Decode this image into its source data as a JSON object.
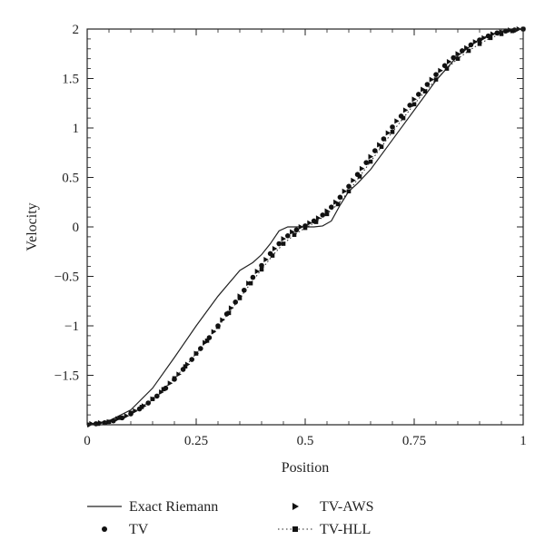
{
  "chart_data": {
    "type": "line",
    "xlabel": "Position",
    "ylabel": "Velocity",
    "xlim": [
      0,
      1
    ],
    "ylim": [
      -2,
      2
    ],
    "grid": false,
    "legend_position": "bottom",
    "x_ticks": [
      {
        "value": 0,
        "label": "0"
      },
      {
        "value": 0.25,
        "label": "0.25"
      },
      {
        "value": 0.5,
        "label": "0.5"
      },
      {
        "value": 0.75,
        "label": "0.75"
      },
      {
        "value": 1,
        "label": "1"
      }
    ],
    "y_ticks": [
      {
        "value": 2,
        "label": "2"
      },
      {
        "value": 1.5,
        "label": "1.5"
      },
      {
        "value": 1,
        "label": "1"
      },
      {
        "value": 0.5,
        "label": "0.5"
      },
      {
        "value": 0,
        "label": "0"
      },
      {
        "value": -0.5,
        "label": "−0.5"
      },
      {
        "value": -1,
        "label": "−1"
      },
      {
        "value": -1.5,
        "label": "−1.5"
      }
    ],
    "series": [
      {
        "name": "Exact Riemann",
        "style": "solid-line",
        "x": [
          0,
          0.05,
          0.1,
          0.15,
          0.2,
          0.25,
          0.3,
          0.35,
          0.38,
          0.4,
          0.42,
          0.44,
          0.46,
          0.48,
          0.5,
          0.52,
          0.54,
          0.56,
          0.58,
          0.6,
          0.62,
          0.65,
          0.7,
          0.75,
          0.8,
          0.85,
          0.9,
          0.95,
          1.0
        ],
        "y": [
          -2.0,
          -1.96,
          -1.85,
          -1.63,
          -1.32,
          -1.0,
          -0.7,
          -0.44,
          -0.36,
          -0.28,
          -0.17,
          -0.04,
          0.0,
          0.0,
          0.0,
          0.0,
          0.01,
          0.06,
          0.22,
          0.36,
          0.44,
          0.58,
          0.88,
          1.18,
          1.48,
          1.73,
          1.9,
          1.98,
          2.0
        ]
      },
      {
        "name": "TV",
        "style": "circle-markers",
        "x": [
          0.0,
          0.02,
          0.04,
          0.06,
          0.08,
          0.1,
          0.12,
          0.14,
          0.16,
          0.18,
          0.2,
          0.22,
          0.24,
          0.26,
          0.28,
          0.3,
          0.32,
          0.34,
          0.36,
          0.38,
          0.4,
          0.42,
          0.44,
          0.46,
          0.48,
          0.5,
          0.52,
          0.54,
          0.56,
          0.58,
          0.6,
          0.62,
          0.64,
          0.66,
          0.68,
          0.7,
          0.72,
          0.74,
          0.76,
          0.78,
          0.8,
          0.82,
          0.84,
          0.86,
          0.88,
          0.9,
          0.92,
          0.94,
          0.96,
          0.98,
          1.0
        ],
        "y": [
          -2.0,
          -1.99,
          -1.98,
          -1.96,
          -1.93,
          -1.89,
          -1.84,
          -1.78,
          -1.71,
          -1.63,
          -1.54,
          -1.44,
          -1.34,
          -1.23,
          -1.12,
          -1.0,
          -0.88,
          -0.76,
          -0.64,
          -0.51,
          -0.39,
          -0.27,
          -0.17,
          -0.09,
          -0.03,
          0.01,
          0.06,
          0.12,
          0.2,
          0.3,
          0.41,
          0.53,
          0.65,
          0.77,
          0.89,
          1.01,
          1.12,
          1.23,
          1.34,
          1.44,
          1.54,
          1.63,
          1.71,
          1.78,
          1.84,
          1.89,
          1.93,
          1.96,
          1.98,
          1.99,
          2.0
        ]
      },
      {
        "name": "TV-AWS",
        "style": "triangle-markers",
        "x": [
          0.01,
          0.03,
          0.05,
          0.07,
          0.09,
          0.11,
          0.13,
          0.15,
          0.17,
          0.19,
          0.21,
          0.23,
          0.25,
          0.27,
          0.29,
          0.31,
          0.33,
          0.35,
          0.37,
          0.39,
          0.41,
          0.43,
          0.45,
          0.47,
          0.49,
          0.51,
          0.53,
          0.55,
          0.57,
          0.59,
          0.61,
          0.63,
          0.65,
          0.67,
          0.69,
          0.71,
          0.73,
          0.75,
          0.77,
          0.79,
          0.81,
          0.83,
          0.85,
          0.87,
          0.89,
          0.91,
          0.93,
          0.95,
          0.97,
          0.99
        ],
        "y": [
          -1.99,
          -1.98,
          -1.97,
          -1.94,
          -1.91,
          -1.86,
          -1.81,
          -1.74,
          -1.67,
          -1.58,
          -1.49,
          -1.39,
          -1.28,
          -1.17,
          -1.06,
          -0.94,
          -0.82,
          -0.7,
          -0.57,
          -0.45,
          -0.33,
          -0.22,
          -0.12,
          -0.05,
          0.0,
          0.04,
          0.09,
          0.16,
          0.25,
          0.36,
          0.47,
          0.59,
          0.71,
          0.83,
          0.95,
          1.07,
          1.18,
          1.29,
          1.39,
          1.49,
          1.58,
          1.67,
          1.75,
          1.81,
          1.87,
          1.91,
          1.95,
          1.97,
          1.99,
          2.0
        ]
      },
      {
        "name": "TV-HLL",
        "style": "dotted-square-markers",
        "x": [
          0.0,
          0.025,
          0.05,
          0.075,
          0.1,
          0.125,
          0.15,
          0.175,
          0.2,
          0.225,
          0.25,
          0.275,
          0.3,
          0.325,
          0.35,
          0.375,
          0.4,
          0.425,
          0.45,
          0.475,
          0.5,
          0.525,
          0.55,
          0.575,
          0.6,
          0.625,
          0.65,
          0.675,
          0.7,
          0.725,
          0.75,
          0.775,
          0.8,
          0.825,
          0.85,
          0.875,
          0.9,
          0.925,
          0.95,
          0.975,
          1.0
        ],
        "y": [
          -2.0,
          -1.99,
          -1.97,
          -1.93,
          -1.88,
          -1.82,
          -1.74,
          -1.64,
          -1.53,
          -1.41,
          -1.28,
          -1.15,
          -1.01,
          -0.87,
          -0.72,
          -0.57,
          -0.43,
          -0.29,
          -0.17,
          -0.08,
          -0.01,
          0.05,
          0.13,
          0.23,
          0.36,
          0.51,
          0.66,
          0.81,
          0.96,
          1.1,
          1.24,
          1.37,
          1.49,
          1.6,
          1.7,
          1.78,
          1.85,
          1.91,
          1.95,
          1.98,
          2.0
        ]
      }
    ]
  }
}
